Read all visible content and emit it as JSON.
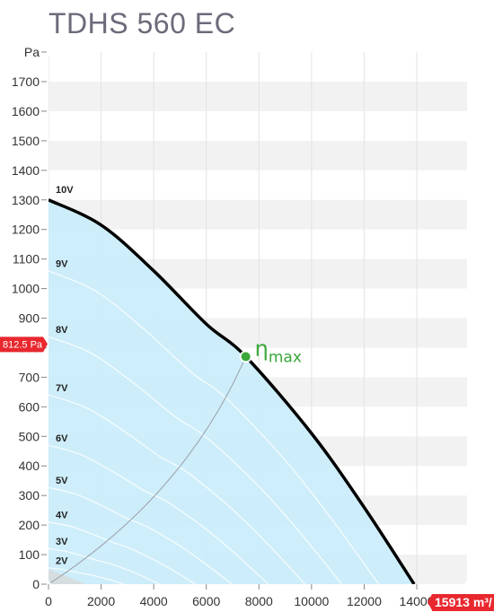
{
  "title": "TDHS 560 EC",
  "chart_data": {
    "type": "line",
    "title": "TDHS 560 EC",
    "xlabel": "",
    "ylabel": "Pa",
    "xlim": [
      0,
      15913
    ],
    "ylim": [
      0,
      1800
    ],
    "x_ticks": [
      0,
      2000,
      4000,
      6000,
      8000,
      10000,
      12000,
      14000
    ],
    "y_ticks": [
      0,
      100,
      200,
      300,
      400,
      500,
      600,
      700,
      800,
      900,
      1000,
      1100,
      1200,
      1300,
      1400,
      1500,
      1600,
      1700
    ],
    "y_unit_label": "Pa",
    "main_curve": {
      "name": "10V",
      "x": [
        0,
        2000,
        4000,
        6000,
        7500,
        10000,
        12000,
        13900
      ],
      "y": [
        1300,
        1215,
        1060,
        880,
        770,
        510,
        260,
        0
      ]
    },
    "voltage_labels": [
      {
        "label": "10V",
        "y": 1335
      },
      {
        "label": "9V",
        "y": 1085
      },
      {
        "label": "8V",
        "y": 862
      },
      {
        "label": "7V",
        "y": 665
      },
      {
        "label": "6V",
        "y": 495
      },
      {
        "label": "5V",
        "y": 352
      },
      {
        "label": "4V",
        "y": 235
      },
      {
        "label": "3V",
        "y": 145
      },
      {
        "label": "2V",
        "y": 80
      }
    ],
    "eta_max": {
      "label": "η",
      "sub": "max",
      "x": 7500,
      "y": 770
    },
    "y_marker": {
      "label": "812.5 Pa",
      "value": 812.5
    },
    "x_marker": {
      "label": "15913 m³/",
      "value": 15913
    },
    "colors": {
      "fill": "#c9ecfb",
      "curve": "#000000",
      "eta": "#3aa83a",
      "marker": "#e8282e",
      "band": "#f2f2f2"
    },
    "grid": true
  }
}
